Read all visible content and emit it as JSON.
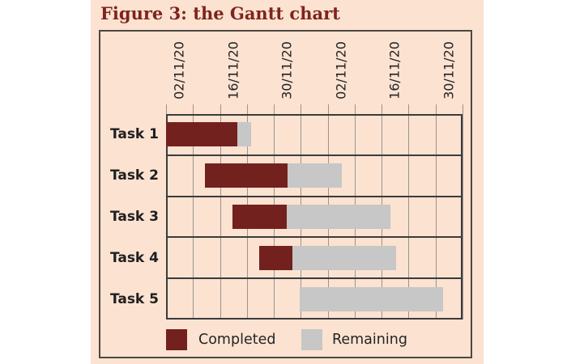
{
  "figure": {
    "title": "Figure 3: the Gantt chart"
  },
  "colors": {
    "panel_background": "#fce2d1",
    "title_text": "#7e241e",
    "completed": "#72211e",
    "remaining": "#c6c7c6",
    "grid_vertical": "#9a948e",
    "grid_horizontal": "#3b3b3b",
    "label_text": "#1f1f1f"
  },
  "chart_data": {
    "type": "bar",
    "variant": "gantt-horizontal-stacked",
    "title": "",
    "xlabel": "",
    "ylabel": "",
    "grid": true,
    "x_gridline_count": 12,
    "x_tick_labels": [
      "02/11/20",
      "16/11/20",
      "30/11/20",
      "02/11/20",
      "16/11/20",
      "30/11/20"
    ],
    "x_label_gridline_indices": [
      1,
      3,
      5,
      7,
      9,
      11
    ],
    "categories": [
      "Task 1",
      "Task 2",
      "Task 3",
      "Task 4",
      "Task 5"
    ],
    "series": [
      {
        "name": "Completed",
        "color": "#72211e",
        "spans_pct": [
          [
            0.0,
            24.0
          ],
          [
            13.1,
            41.0
          ],
          [
            22.4,
            40.7
          ],
          [
            31.4,
            42.6
          ],
          null
        ]
      },
      {
        "name": "Remaining",
        "color": "#c6c7c6",
        "spans_pct": [
          [
            24.0,
            28.7
          ],
          [
            41.0,
            59.3
          ],
          [
            40.7,
            75.7
          ],
          [
            42.6,
            77.6
          ],
          [
            45.1,
            93.4
          ]
        ]
      }
    ],
    "legend": {
      "position": "bottom",
      "entries": [
        {
          "label": "Completed",
          "color": "#72211e"
        },
        {
          "label": "Remaining",
          "color": "#c6c7c6"
        }
      ]
    }
  }
}
